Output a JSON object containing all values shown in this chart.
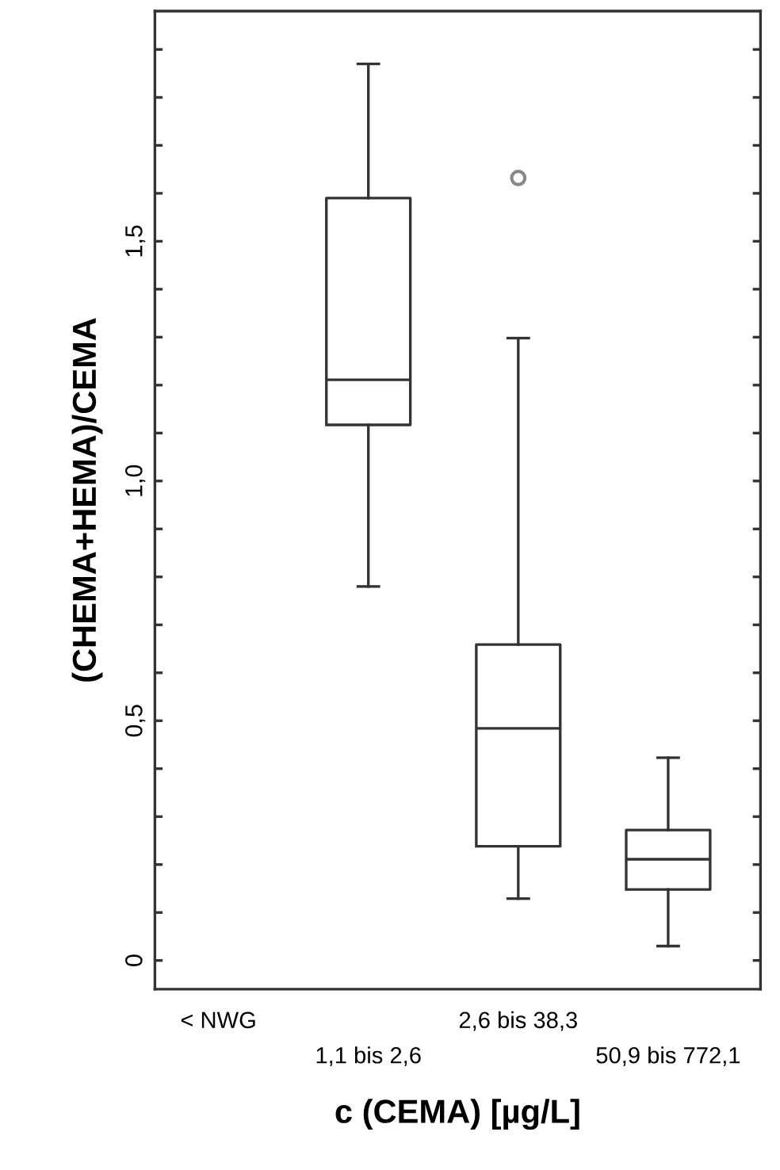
{
  "chart_data": {
    "type": "box",
    "xlabel": "c (CEMA) [µg/L]",
    "ylabel": "(CHEMA+HEMA)/CEMA",
    "categories": [
      "< NWG",
      "1,1 bis 2,6",
      "2,6 bis 38,3",
      "50,9 bis 772,1"
    ],
    "boxes": [
      null,
      {
        "low": 0.78,
        "q1": 1.117,
        "median": 1.211,
        "q3": 1.59,
        "high": 1.87
      },
      {
        "low": 0.129,
        "q1": 0.238,
        "median": 0.484,
        "q3": 0.659,
        "high": 1.298,
        "outliers": [
          1.632
        ]
      },
      {
        "low": 0.03,
        "q1": 0.148,
        "median": 0.211,
        "q3": 0.272,
        "high": 0.423
      }
    ],
    "ylim": [
      -0.06,
      1.98
    ],
    "yticks": [
      {
        "value": 0,
        "label": "0"
      },
      {
        "value": 0.1,
        "label": null
      },
      {
        "value": 0.2,
        "label": null
      },
      {
        "value": 0.3,
        "label": null
      },
      {
        "value": 0.4,
        "label": null
      },
      {
        "value": 0.5,
        "label": "0,5"
      },
      {
        "value": 0.6,
        "label": null
      },
      {
        "value": 0.7,
        "label": null
      },
      {
        "value": 0.8,
        "label": null
      },
      {
        "value": 0.9,
        "label": null
      },
      {
        "value": 1.0,
        "label": "1,0"
      },
      {
        "value": 1.1,
        "label": null
      },
      {
        "value": 1.2,
        "label": null
      },
      {
        "value": 1.3,
        "label": null
      },
      {
        "value": 1.4,
        "label": null
      },
      {
        "value": 1.5,
        "label": "1,5"
      },
      {
        "value": 1.6,
        "label": null
      },
      {
        "value": 1.7,
        "label": null
      },
      {
        "value": 1.8,
        "label": null
      },
      {
        "value": 1.9,
        "label": null
      }
    ]
  }
}
